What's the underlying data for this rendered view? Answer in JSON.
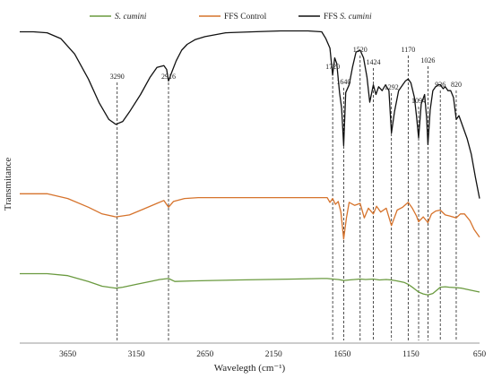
{
  "chart_data": {
    "type": "line",
    "title": "",
    "xlabel": "Wavelegth (cm⁻¹)",
    "ylabel": "Transmitance",
    "xlim": [
      4000,
      650
    ],
    "x_reversed": true,
    "grid": false,
    "legend_position": "top",
    "x_ticks": [
      3650,
      3150,
      2650,
      2150,
      1650,
      1150,
      650
    ],
    "peak_markers": [
      3290,
      2916,
      1720,
      1640,
      1520,
      1424,
      1292,
      1170,
      1094,
      1026,
      936,
      820
    ],
    "series": [
      {
        "name": "S. cumini",
        "italic": true,
        "color": "#6a9a3f",
        "x": [
          4000,
          3800,
          3650,
          3500,
          3400,
          3300,
          3250,
          3150,
          3050,
          2980,
          2916,
          2870,
          2750,
          2600,
          2400,
          2200,
          2000,
          1800,
          1760,
          1720,
          1680,
          1640,
          1600,
          1560,
          1520,
          1480,
          1424,
          1380,
          1330,
          1292,
          1250,
          1200,
          1170,
          1130,
          1094,
          1060,
          1026,
          990,
          960,
          936,
          900,
          870,
          820,
          780,
          720,
          650
        ],
        "y": [
          72,
          72,
          70,
          64,
          59,
          57,
          58,
          61,
          64,
          66,
          67,
          64,
          64.5,
          65,
          65.5,
          66,
          66.5,
          67,
          67,
          66.5,
          66,
          65,
          65.5,
          66,
          66.5,
          66,
          66.5,
          65.5,
          66,
          65.5,
          64.5,
          63,
          61,
          57,
          53,
          51,
          50,
          51.5,
          55,
          58,
          58.5,
          58,
          57.5,
          57,
          55,
          53
        ]
      },
      {
        "name": "FFS Control",
        "italic": false,
        "color": "#d6732c",
        "x": [
          4000,
          3800,
          3650,
          3500,
          3400,
          3300,
          3200,
          3100,
          3000,
          2950,
          2916,
          2880,
          2800,
          2700,
          2500,
          2300,
          2100,
          1900,
          1760,
          1740,
          1720,
          1700,
          1680,
          1660,
          1640,
          1620,
          1600,
          1560,
          1520,
          1490,
          1460,
          1424,
          1400,
          1370,
          1330,
          1292,
          1250,
          1210,
          1170,
          1140,
          1110,
          1094,
          1060,
          1026,
          1000,
          970,
          936,
          900,
          870,
          820,
          790,
          760,
          720,
          690,
          650
        ],
        "y": [
          155,
          155,
          150,
          141,
          134,
          131,
          133,
          139,
          145,
          148,
          141,
          147,
          150,
          151,
          151,
          151,
          151,
          151,
          151,
          146,
          150,
          144,
          147,
          136,
          108,
          130,
          146,
          143,
          145,
          130,
          140,
          134,
          142,
          136,
          140,
          122,
          138,
          141,
          146,
          140,
          132,
          126,
          131,
          125,
          134,
          137,
          138,
          133,
          132,
          130,
          134,
          134,
          127,
          118,
          110
        ]
      },
      {
        "name": "FFS S. cumini",
        "italic": true,
        "italic_part": "S. cumini",
        "color": "#111111",
        "x": [
          4000,
          3900,
          3800,
          3700,
          3600,
          3500,
          3420,
          3350,
          3300,
          3250,
          3200,
          3120,
          3050,
          3000,
          2950,
          2930,
          2916,
          2890,
          2860,
          2820,
          2780,
          2720,
          2650,
          2500,
          2300,
          2100,
          1900,
          1800,
          1770,
          1740,
          1720,
          1705,
          1690,
          1670,
          1655,
          1640,
          1625,
          1600,
          1575,
          1550,
          1520,
          1495,
          1470,
          1450,
          1424,
          1405,
          1385,
          1360,
          1335,
          1310,
          1292,
          1270,
          1240,
          1210,
          1190,
          1170,
          1150,
          1125,
          1110,
          1094,
          1075,
          1050,
          1035,
          1026,
          1010,
          990,
          970,
          950,
          936,
          915,
          900,
          880,
          860,
          840,
          820,
          800,
          770,
          740,
          710,
          680,
          650
        ],
        "y": [
          323,
          323,
          322,
          316,
          300,
          274,
          249,
          232,
          227,
          230,
          240,
          258,
          276,
          286,
          288,
          284,
          272,
          282,
          293,
          304,
          310,
          315,
          318,
          322,
          323,
          324,
          324,
          323,
          316,
          306,
          278,
          296,
          290,
          260,
          244,
          205,
          260,
          268,
          287,
          302,
          304,
          296,
          276,
          250,
          268,
          258,
          266,
          262,
          268,
          262,
          218,
          240,
          262,
          268,
          272,
          274,
          270,
          255,
          236,
          213,
          248,
          258,
          233,
          206,
          242,
          262,
          266,
          268,
          268,
          264,
          266,
          262,
          262,
          255,
          232,
          236,
          224,
          212,
          196,
          172,
          150
        ]
      }
    ]
  }
}
